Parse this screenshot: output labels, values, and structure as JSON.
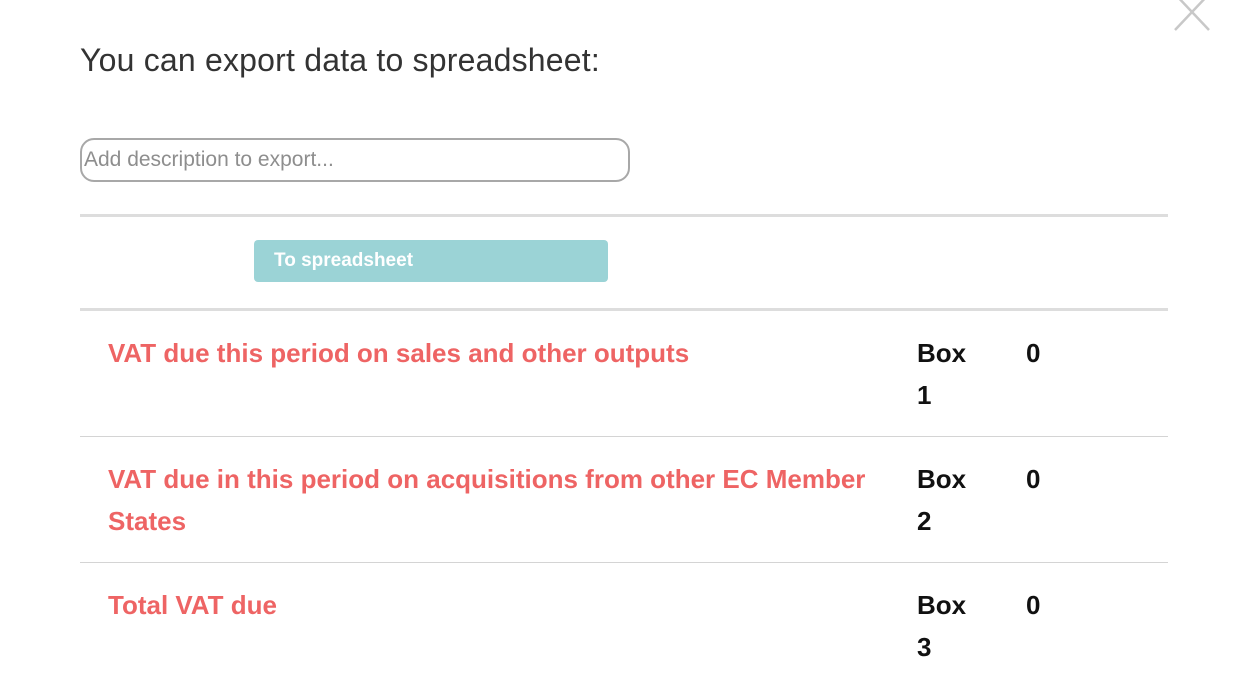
{
  "dialog": {
    "heading": "You can export data to spreadsheet:",
    "description_input": {
      "value": "",
      "placeholder": "Add description to export..."
    },
    "export_button_label": "To spreadsheet",
    "close_icon": "close-icon"
  },
  "rows": [
    {
      "label": "VAT due this period on sales and other outputs",
      "box": "Box 1",
      "value": "0"
    },
    {
      "label": "VAT due in this period on acquisitions from other EC Member States",
      "box": "Box 2",
      "value": "0"
    },
    {
      "label": "Total VAT due",
      "box": "Box 3",
      "value": "0"
    }
  ],
  "colors": {
    "label_red": "#ee6464",
    "button_teal": "#9bd3d6",
    "divider_gray": "#dddddd"
  }
}
